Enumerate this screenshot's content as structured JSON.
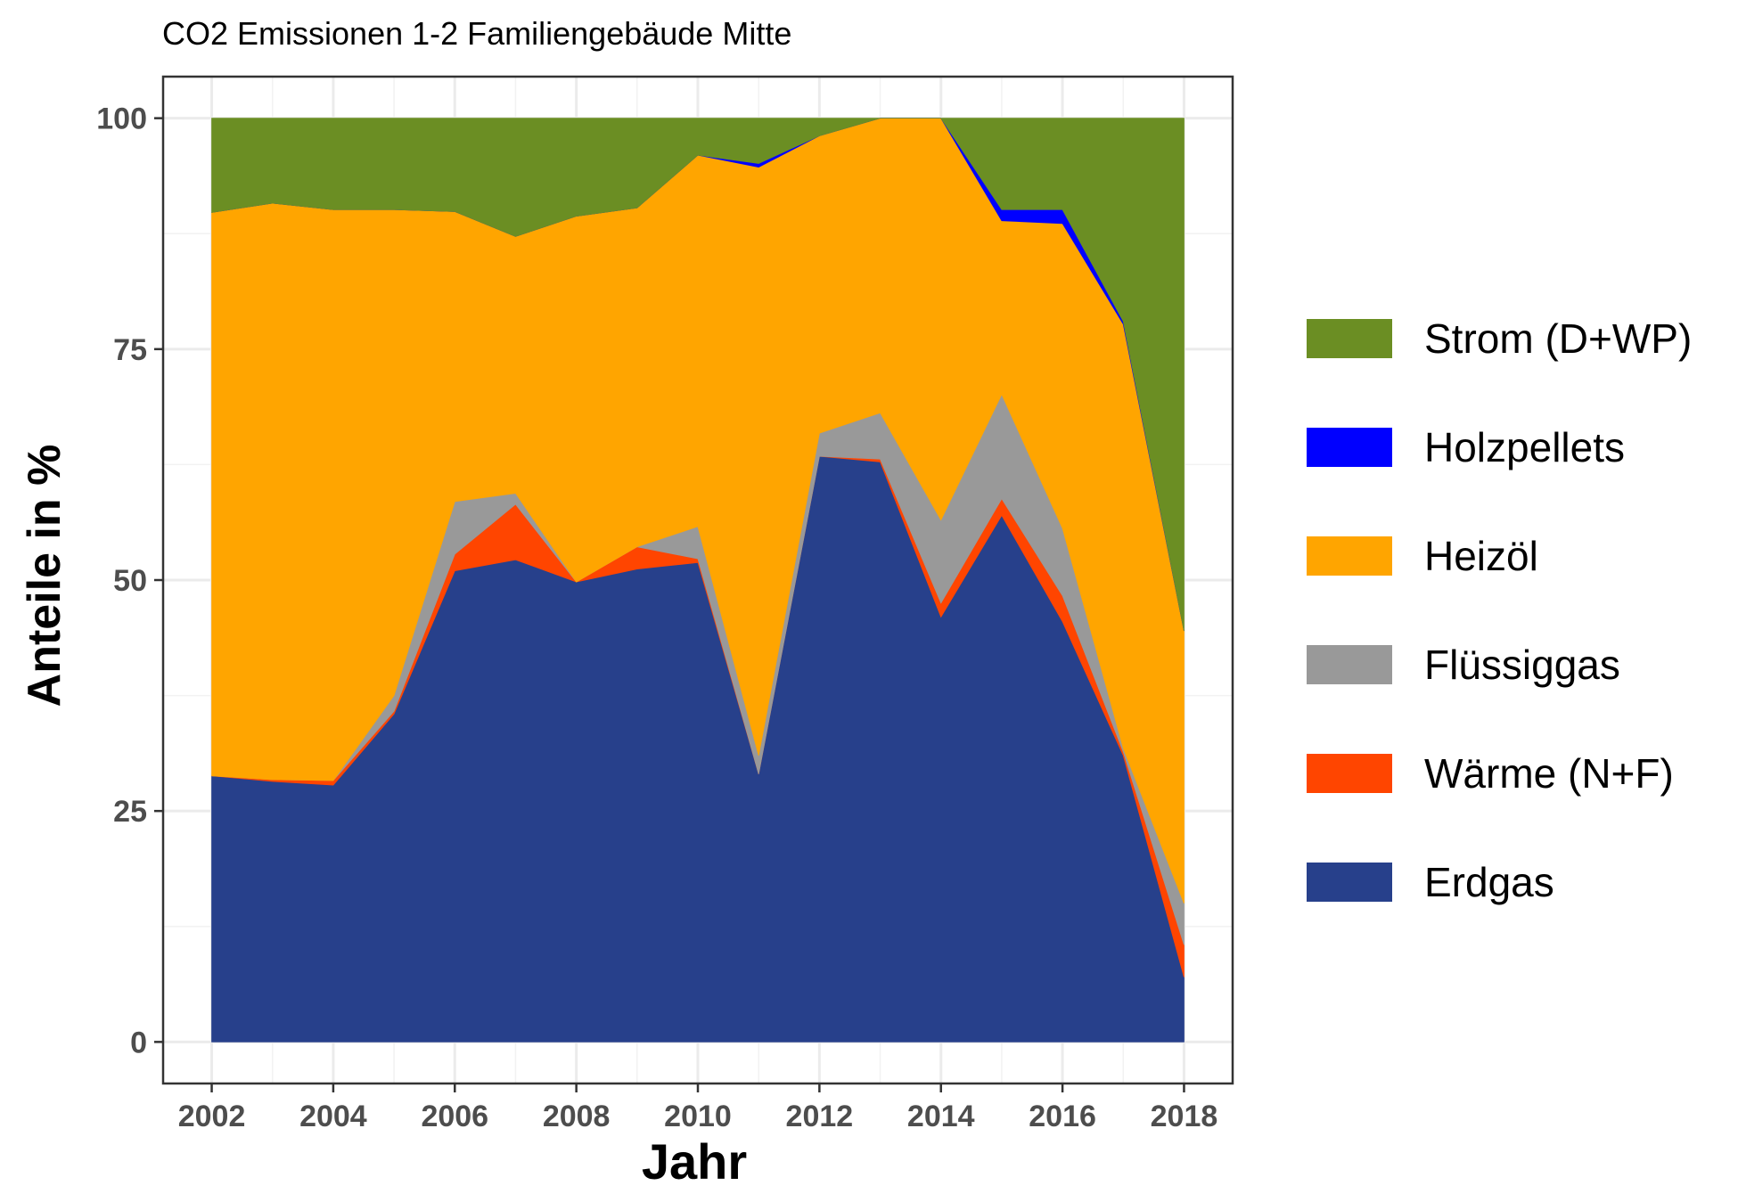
{
  "chart_data": {
    "type": "area",
    "stacked": true,
    "title": "CO2 Emissionen 1-2 Familiengebäude Mitte",
    "xlabel": "Jahr",
    "ylabel": "Anteile in %",
    "xlim": [
      2001.2,
      2018.8
    ],
    "ylim": [
      -4.5,
      104.5
    ],
    "x_ticks": [
      2002,
      2004,
      2006,
      2008,
      2010,
      2012,
      2014,
      2016,
      2018
    ],
    "y_ticks": [
      0,
      25,
      50,
      75,
      100
    ],
    "grid": true,
    "legend_position": "right",
    "x": [
      2002,
      2003,
      2004,
      2005,
      2006,
      2007,
      2008,
      2009,
      2010,
      2011,
      2012,
      2013,
      2014,
      2015,
      2016,
      2017,
      2018
    ],
    "series": [
      {
        "name": "Erdgas",
        "color": "#27408b",
        "values": [
          28.8,
          28.2,
          27.8,
          35.5,
          51.0,
          52.2,
          49.8,
          51.2,
          51.9,
          29.0,
          63.4,
          62.8,
          46.0,
          57.0,
          45.5,
          31.0,
          7.0
        ]
      },
      {
        "name": "Wärme (N+F)",
        "color": "#ff4500",
        "values": [
          0.0,
          0.2,
          0.5,
          0.3,
          1.8,
          6.0,
          0.0,
          2.4,
          0.4,
          0.0,
          0.0,
          0.3,
          1.5,
          1.8,
          2.8,
          0.4,
          3.5
        ]
      },
      {
        "name": "Flüssiggas",
        "color": "#999999",
        "values": [
          0.0,
          0.0,
          0.0,
          1.7,
          5.7,
          1.2,
          0.0,
          0.0,
          3.5,
          2.0,
          2.5,
          5.0,
          9.0,
          11.3,
          7.3,
          0.4,
          4.5
        ]
      },
      {
        "name": "Heizöl",
        "color": "#ffa500",
        "values": [
          61.0,
          62.4,
          61.8,
          52.6,
          31.4,
          27.8,
          39.6,
          36.7,
          40.2,
          63.7,
          32.2,
          31.9,
          43.5,
          18.8,
          33.0,
          45.9,
          29.5
        ]
      },
      {
        "name": "Holzpellets",
        "color": "#0000ff",
        "values": [
          0.0,
          0.0,
          0.0,
          0.0,
          0.0,
          0.0,
          0.0,
          0.0,
          0.0,
          0.4,
          0.0,
          0.0,
          0.0,
          1.2,
          1.5,
          0.3,
          0.0
        ]
      },
      {
        "name": "Strom (D+WP)",
        "color": "#6b8e23",
        "values": [
          10.2,
          9.2,
          9.9,
          9.9,
          10.1,
          12.8,
          10.6,
          9.7,
          4.0,
          4.9,
          1.9,
          0.0,
          0.0,
          9.9,
          9.9,
          22.0,
          55.5
        ]
      }
    ],
    "legend_order": [
      "Strom (D+WP)",
      "Holzpellets",
      "Heizöl",
      "Flüssiggas",
      "Wärme (N+F)",
      "Erdgas"
    ]
  }
}
